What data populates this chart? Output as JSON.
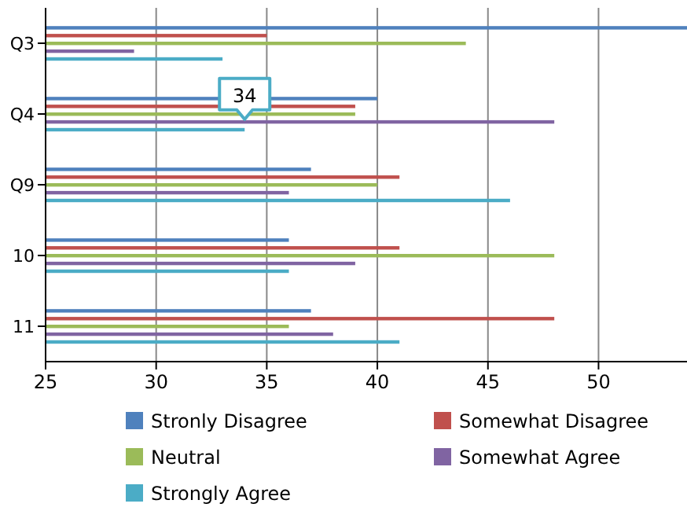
{
  "chart_data": {
    "type": "bar",
    "orientation": "horizontal",
    "categories": [
      "Q3",
      "Q4",
      "Q9",
      "10",
      "11"
    ],
    "series": [
      {
        "name": "Stronly Disagree",
        "color": "#4f81bd",
        "values": [
          54,
          40,
          37,
          36,
          37
        ]
      },
      {
        "name": "Somewhat Disagree",
        "color": "#c0504d",
        "values": [
          35,
          39,
          41,
          41,
          48
        ]
      },
      {
        "name": "Neutral",
        "color": "#9bbb59",
        "values": [
          44,
          39,
          40,
          48,
          36
        ]
      },
      {
        "name": "Somewhat Agree",
        "color": "#8064a2",
        "values": [
          29,
          48,
          36,
          39,
          38
        ]
      },
      {
        "name": "Strongly Agree",
        "color": "#4bacc6",
        "values": [
          33,
          34,
          46,
          36,
          41
        ]
      }
    ],
    "xlim": [
      25,
      54
    ],
    "xticks": [
      25,
      30,
      35,
      40,
      45,
      50
    ],
    "grid": "x",
    "legend": "bottom",
    "annotations": [
      {
        "text": "34",
        "x": 34,
        "y": "Q4"
      }
    ]
  }
}
